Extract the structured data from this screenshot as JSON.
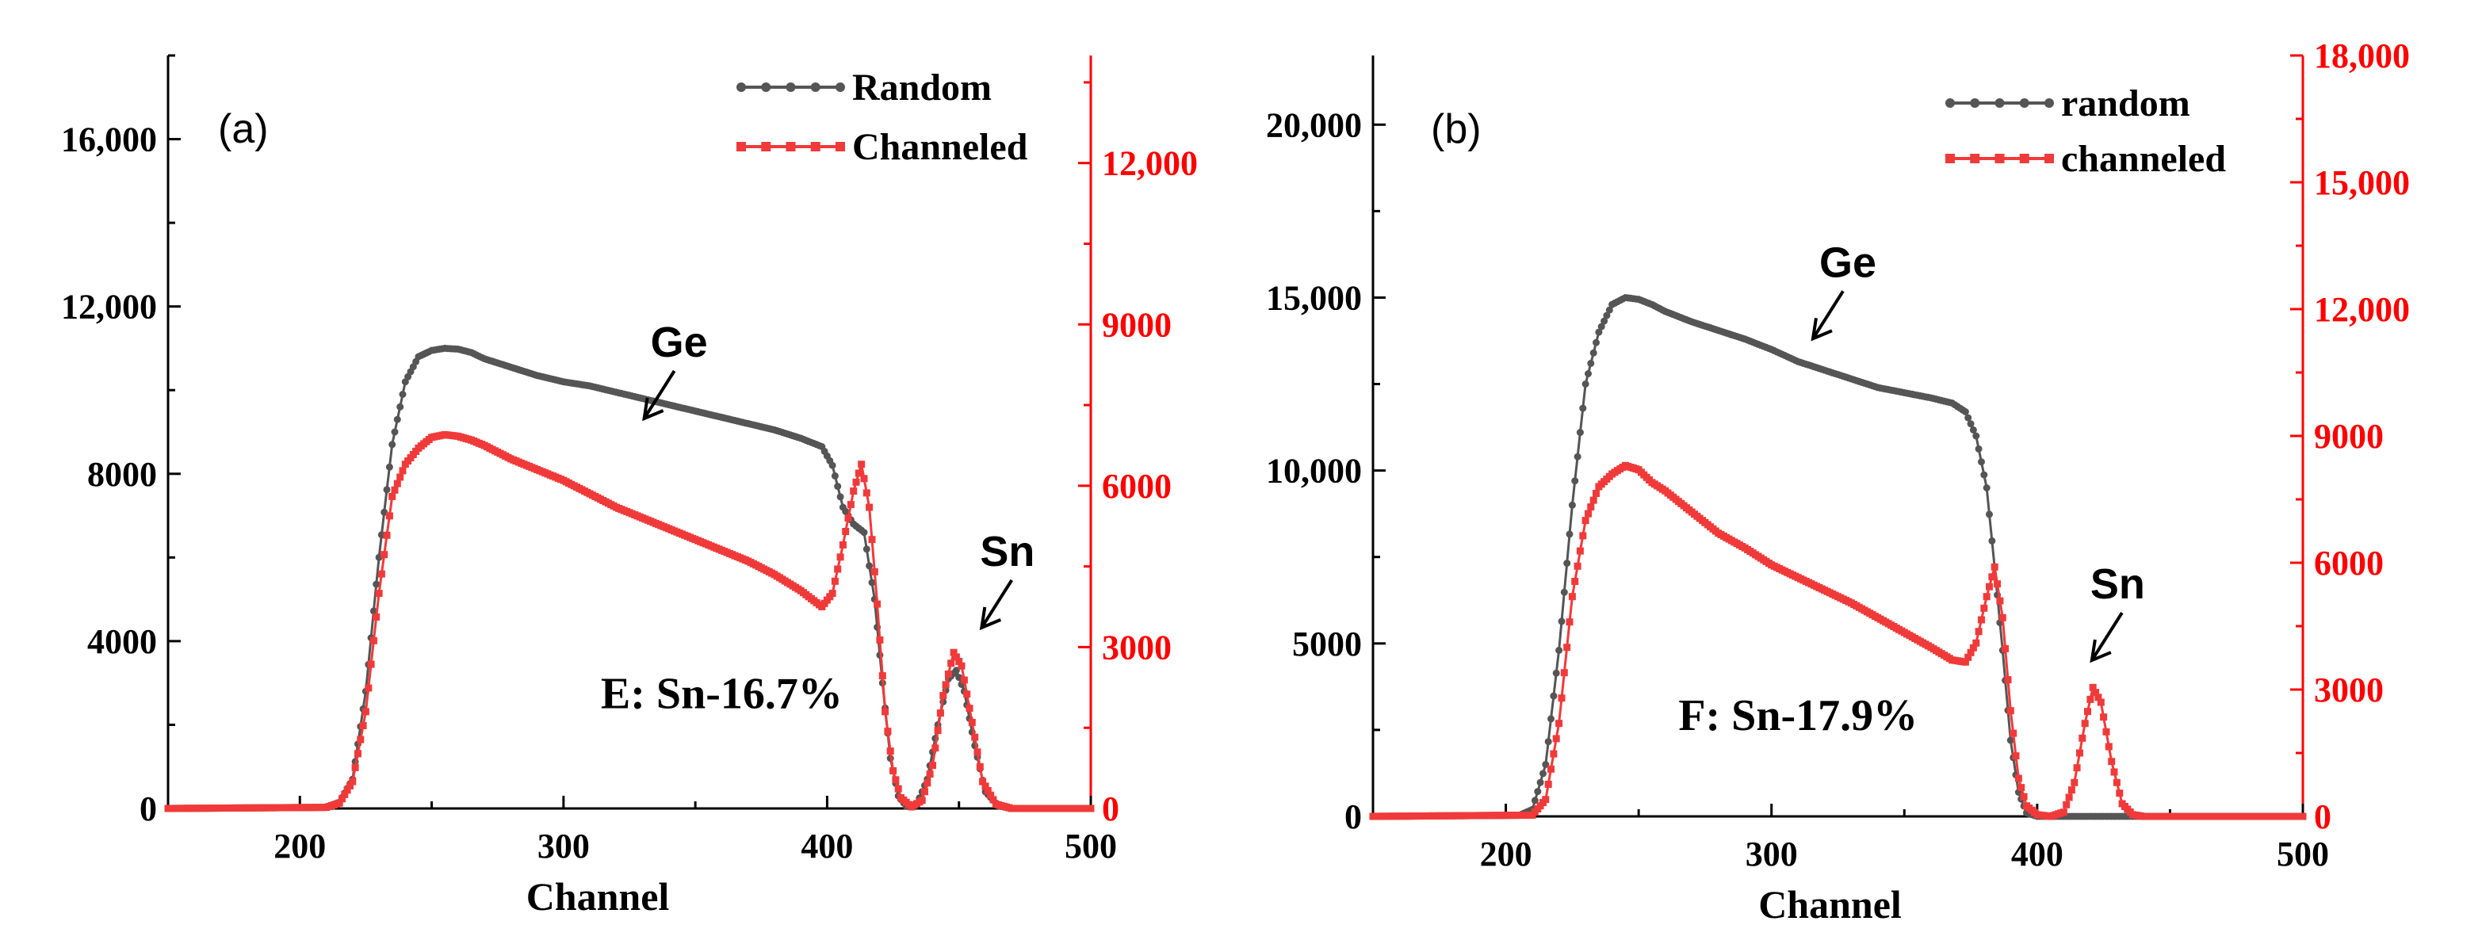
{
  "colors": {
    "random": "#555555",
    "channeled": "#f03a3a",
    "axis_left": "#000000",
    "axis_right": "#ff0000"
  },
  "chart_data": [
    {
      "type": "line",
      "panel_label": "(a)",
      "xlabel": "Channel",
      "xlim": [
        150,
        500
      ],
      "x_ticks": [
        200,
        300,
        400,
        500
      ],
      "x_tick_labels": [
        "200",
        "300",
        "400",
        "500"
      ],
      "ylim_left": [
        0,
        18000
      ],
      "y_ticks_left": [
        0,
        4000,
        8000,
        12000,
        16000
      ],
      "y_tick_labels_left": [
        "0",
        "4000",
        "8000",
        "12,000",
        "16,000"
      ],
      "ylim_right": [
        0,
        14000
      ],
      "y_ticks_right": [
        0,
        3000,
        6000,
        9000,
        12000
      ],
      "y_tick_labels_right": [
        "0",
        "3000",
        "6000",
        "9000",
        "12,000"
      ],
      "series": [
        {
          "name": "Random",
          "axis": "left",
          "marker": "circle",
          "points": [
            [
              150,
              0
            ],
            [
              210,
              30
            ],
            [
              215,
              150
            ],
            [
              220,
              700
            ],
            [
              225,
              2800
            ],
            [
              230,
              6000
            ],
            [
              235,
              8700
            ],
            [
              240,
              10200
            ],
            [
              245,
              10800
            ],
            [
              250,
              10950
            ],
            [
              255,
              11000
            ],
            [
              260,
              10980
            ],
            [
              265,
              10900
            ],
            [
              270,
              10750
            ],
            [
              280,
              10550
            ],
            [
              290,
              10350
            ],
            [
              300,
              10200
            ],
            [
              310,
              10100
            ],
            [
              320,
              9950
            ],
            [
              330,
              9800
            ],
            [
              340,
              9650
            ],
            [
              350,
              9500
            ],
            [
              360,
              9350
            ],
            [
              370,
              9200
            ],
            [
              380,
              9050
            ],
            [
              390,
              8850
            ],
            [
              398,
              8650
            ],
            [
              402,
              8200
            ],
            [
              406,
              7200
            ],
            [
              410,
              6800
            ],
            [
              414,
              6600
            ],
            [
              418,
              5000
            ],
            [
              421,
              3000
            ],
            [
              424,
              1200
            ],
            [
              427,
              300
            ],
            [
              430,
              50
            ],
            [
              434,
              100
            ],
            [
              438,
              700
            ],
            [
              442,
              2000
            ],
            [
              446,
              3100
            ],
            [
              449,
              3300
            ],
            [
              452,
              2800
            ],
            [
              456,
              1500
            ],
            [
              460,
              400
            ],
            [
              465,
              60
            ],
            [
              470,
              0
            ],
            [
              500,
              0
            ]
          ]
        },
        {
          "name": "Channeled",
          "axis": "right",
          "marker": "square",
          "points": [
            [
              150,
              0
            ],
            [
              210,
              20
            ],
            [
              215,
              100
            ],
            [
              220,
              500
            ],
            [
              225,
              1800
            ],
            [
              230,
              4000
            ],
            [
              235,
              5800
            ],
            [
              240,
              6400
            ],
            [
              245,
              6700
            ],
            [
              250,
              6900
            ],
            [
              255,
              6950
            ],
            [
              260,
              6920
            ],
            [
              265,
              6850
            ],
            [
              270,
              6750
            ],
            [
              280,
              6500
            ],
            [
              290,
              6300
            ],
            [
              300,
              6100
            ],
            [
              310,
              5850
            ],
            [
              320,
              5600
            ],
            [
              330,
              5400
            ],
            [
              340,
              5200
            ],
            [
              350,
              5000
            ],
            [
              360,
              4800
            ],
            [
              370,
              4600
            ],
            [
              380,
              4350
            ],
            [
              390,
              4050
            ],
            [
              398,
              3750
            ],
            [
              402,
              4000
            ],
            [
              406,
              4900
            ],
            [
              410,
              5900
            ],
            [
              413,
              6400
            ],
            [
              416,
              5600
            ],
            [
              419,
              3800
            ],
            [
              422,
              1800
            ],
            [
              425,
              700
            ],
            [
              428,
              200
            ],
            [
              432,
              30
            ],
            [
              436,
              150
            ],
            [
              440,
              800
            ],
            [
              444,
              2100
            ],
            [
              448,
              2900
            ],
            [
              451,
              2650
            ],
            [
              455,
              1600
            ],
            [
              459,
              500
            ],
            [
              464,
              80
            ],
            [
              470,
              0
            ],
            [
              500,
              0
            ]
          ]
        }
      ],
      "legend": [
        {
          "label": "Random",
          "series": "Random"
        },
        {
          "label": "Channeled",
          "series": "Channeled"
        }
      ],
      "annotations": [
        {
          "text": "Ge",
          "x": 330,
          "y_left": 10800
        },
        {
          "text": "Sn",
          "x": 458,
          "y_left": 5800
        },
        {
          "text": "E: Sn-16.7%",
          "x": 360,
          "y_left": 2400
        }
      ]
    },
    {
      "type": "line",
      "panel_label": "(b)",
      "xlabel": "Channel",
      "xlim": [
        150,
        500
      ],
      "x_ticks": [
        200,
        300,
        400,
        500
      ],
      "x_tick_labels": [
        "200",
        "300",
        "400",
        "500"
      ],
      "ylim_left": [
        0,
        22000
      ],
      "y_ticks_left": [
        0,
        5000,
        10000,
        15000,
        20000
      ],
      "y_tick_labels_left": [
        "0",
        "5000",
        "10,000",
        "15,000",
        "20,000"
      ],
      "ylim_right": [
        0,
        18000
      ],
      "y_ticks_right": [
        0,
        3000,
        6000,
        9000,
        12000,
        15000,
        18000
      ],
      "y_tick_labels_right": [
        "0",
        "3000",
        "6000",
        "9000",
        "12,000",
        "15,000",
        "18,000"
      ],
      "series": [
        {
          "name": "random",
          "axis": "left",
          "marker": "circle",
          "points": [
            [
              150,
              0
            ],
            [
              205,
              30
            ],
            [
              210,
              200
            ],
            [
              215,
              1500
            ],
            [
              220,
              4800
            ],
            [
              225,
              9000
            ],
            [
              230,
              12500
            ],
            [
              235,
              14000
            ],
            [
              240,
              14800
            ],
            [
              245,
              15000
            ],
            [
              250,
              14950
            ],
            [
              255,
              14800
            ],
            [
              260,
              14600
            ],
            [
              270,
              14300
            ],
            [
              280,
              14050
            ],
            [
              290,
              13800
            ],
            [
              300,
              13500
            ],
            [
              310,
              13150
            ],
            [
              320,
              12900
            ],
            [
              330,
              12650
            ],
            [
              340,
              12400
            ],
            [
              350,
              12250
            ],
            [
              360,
              12100
            ],
            [
              368,
              11950
            ],
            [
              373,
              11700
            ],
            [
              377,
              11000
            ],
            [
              381,
              9500
            ],
            [
              384,
              7200
            ],
            [
              387,
              4800
            ],
            [
              390,
              2200
            ],
            [
              393,
              700
            ],
            [
              396,
              100
            ],
            [
              400,
              0
            ],
            [
              500,
              0
            ]
          ]
        },
        {
          "name": "channeled",
          "axis": "right",
          "marker": "square",
          "points": [
            [
              150,
              0
            ],
            [
              210,
              30
            ],
            [
              215,
              400
            ],
            [
              220,
              2200
            ],
            [
              225,
              5200
            ],
            [
              230,
              7000
            ],
            [
              235,
              7800
            ],
            [
              240,
              8100
            ],
            [
              245,
              8300
            ],
            [
              250,
              8200
            ],
            [
              255,
              7900
            ],
            [
              260,
              7700
            ],
            [
              270,
              7200
            ],
            [
              280,
              6700
            ],
            [
              290,
              6350
            ],
            [
              300,
              5950
            ],
            [
              310,
              5650
            ],
            [
              320,
              5350
            ],
            [
              330,
              5050
            ],
            [
              340,
              4700
            ],
            [
              350,
              4350
            ],
            [
              360,
              4000
            ],
            [
              368,
              3700
            ],
            [
              373,
              3650
            ],
            [
              377,
              4100
            ],
            [
              381,
              5200
            ],
            [
              384,
              5900
            ],
            [
              387,
              4700
            ],
            [
              390,
              2500
            ],
            [
              393,
              900
            ],
            [
              396,
              250
            ],
            [
              400,
              40
            ],
            [
              405,
              0
            ],
            [
              410,
              100
            ],
            [
              414,
              800
            ],
            [
              418,
              2200
            ],
            [
              421,
              3050
            ],
            [
              424,
              2700
            ],
            [
              428,
              1300
            ],
            [
              432,
              300
            ],
            [
              436,
              40
            ],
            [
              440,
              0
            ],
            [
              500,
              0
            ]
          ]
        }
      ],
      "legend": [
        {
          "label": "random",
          "series": "random"
        },
        {
          "label": "channeled",
          "series": "channeled"
        }
      ],
      "annotations": [
        {
          "text": "Ge",
          "x": 315,
          "y_left": 15600
        },
        {
          "text": "Sn",
          "x": 420,
          "y_left": 6300
        },
        {
          "text": "F: Sn-17.9%",
          "x": 310,
          "y_left": 2500
        }
      ]
    }
  ]
}
